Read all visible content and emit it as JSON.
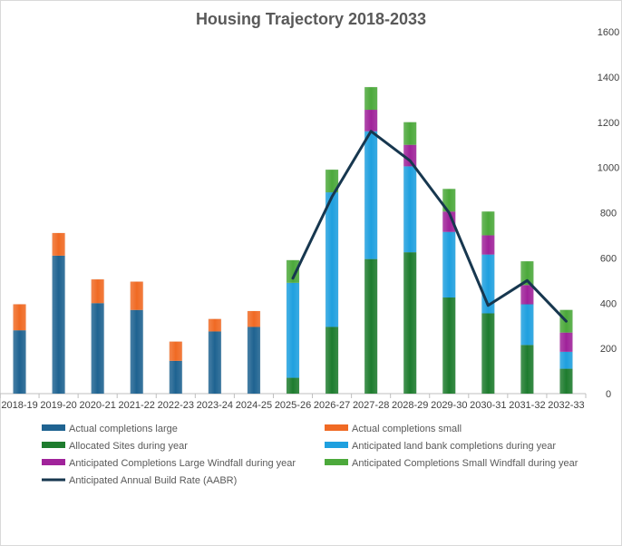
{
  "chart_data": {
    "type": "bar",
    "title": "Housing Trajectory  2018-2033",
    "xlabel": "",
    "ylabel": "",
    "ylim": [
      0,
      1600
    ],
    "yticks": [
      0,
      200,
      400,
      600,
      800,
      1000,
      1200,
      1400,
      1600
    ],
    "y_axis_side": "right",
    "stacked": true,
    "legend_position": "bottom",
    "categories": [
      "2018-19",
      "2019-20",
      "2020-21",
      "2021-22",
      "2022-23",
      "2023-24",
      "2024-25",
      "2025-26",
      "2026-27",
      "2027-28",
      "2028-29",
      "2029-30",
      "2030-31",
      "2031-32",
      "2032-33"
    ],
    "series": [
      {
        "name": "Actual completions large",
        "kind": "bar",
        "color": "#1f6391",
        "values": [
          280,
          610,
          400,
          370,
          145,
          275,
          295,
          0,
          0,
          0,
          0,
          0,
          0,
          0,
          0
        ]
      },
      {
        "name": "Actual completions small",
        "kind": "bar",
        "color": "#f06a24",
        "values": [
          115,
          100,
          105,
          125,
          85,
          55,
          70,
          0,
          0,
          0,
          0,
          0,
          0,
          0,
          0
        ]
      },
      {
        "name": "Allocated Sites during year",
        "kind": "bar",
        "color": "#1e7c2e",
        "values": [
          0,
          0,
          0,
          0,
          0,
          0,
          0,
          70,
          295,
          595,
          625,
          425,
          355,
          215,
          110
        ]
      },
      {
        "name": "Anticipated land bank completions during year",
        "kind": "bar",
        "color": "#1fa0df",
        "values": [
          0,
          0,
          0,
          0,
          0,
          0,
          0,
          420,
          595,
          565,
          380,
          290,
          260,
          180,
          75
        ]
      },
      {
        "name": "Anticipated Completions Large Windfall during year",
        "kind": "bar",
        "color": "#a0239a",
        "values": [
          0,
          0,
          0,
          0,
          0,
          0,
          0,
          0,
          0,
          95,
          95,
          90,
          85,
          85,
          85
        ]
      },
      {
        "name": "Anticipated Completions Small Windfall during year",
        "kind": "bar",
        "color": "#4ca93b",
        "values": [
          0,
          0,
          0,
          0,
          0,
          0,
          0,
          100,
          100,
          100,
          100,
          100,
          105,
          105,
          100
        ]
      },
      {
        "name": "Anticipated Annual Build Rate (AABR)",
        "kind": "line",
        "color": "#17374f",
        "values": [
          null,
          null,
          null,
          null,
          null,
          null,
          null,
          510,
          870,
          1160,
          1030,
          800,
          390,
          500,
          320
        ]
      }
    ]
  }
}
